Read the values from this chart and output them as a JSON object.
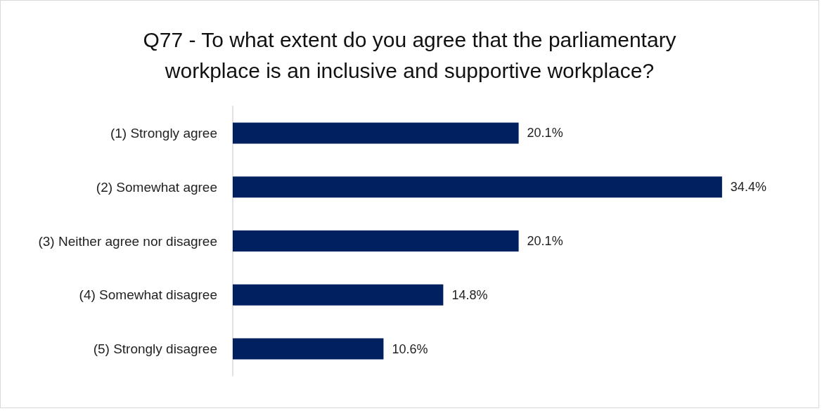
{
  "chart_data": {
    "type": "bar",
    "orientation": "horizontal",
    "title": "Q77 - To what extent do you agree that the parliamentary\nworkplace is an inclusive and supportive workplace?",
    "categories": [
      "(1) Strongly agree",
      "(2) Somewhat agree",
      "(3) Neither agree nor disagree",
      "(4) Somewhat disagree",
      "(5) Strongly disagree"
    ],
    "values": [
      20.1,
      34.4,
      20.1,
      14.8,
      10.6
    ],
    "value_labels": [
      "20.1%",
      "34.4%",
      "20.1%",
      "14.8%",
      "10.6%"
    ],
    "color": "#002060"
  }
}
